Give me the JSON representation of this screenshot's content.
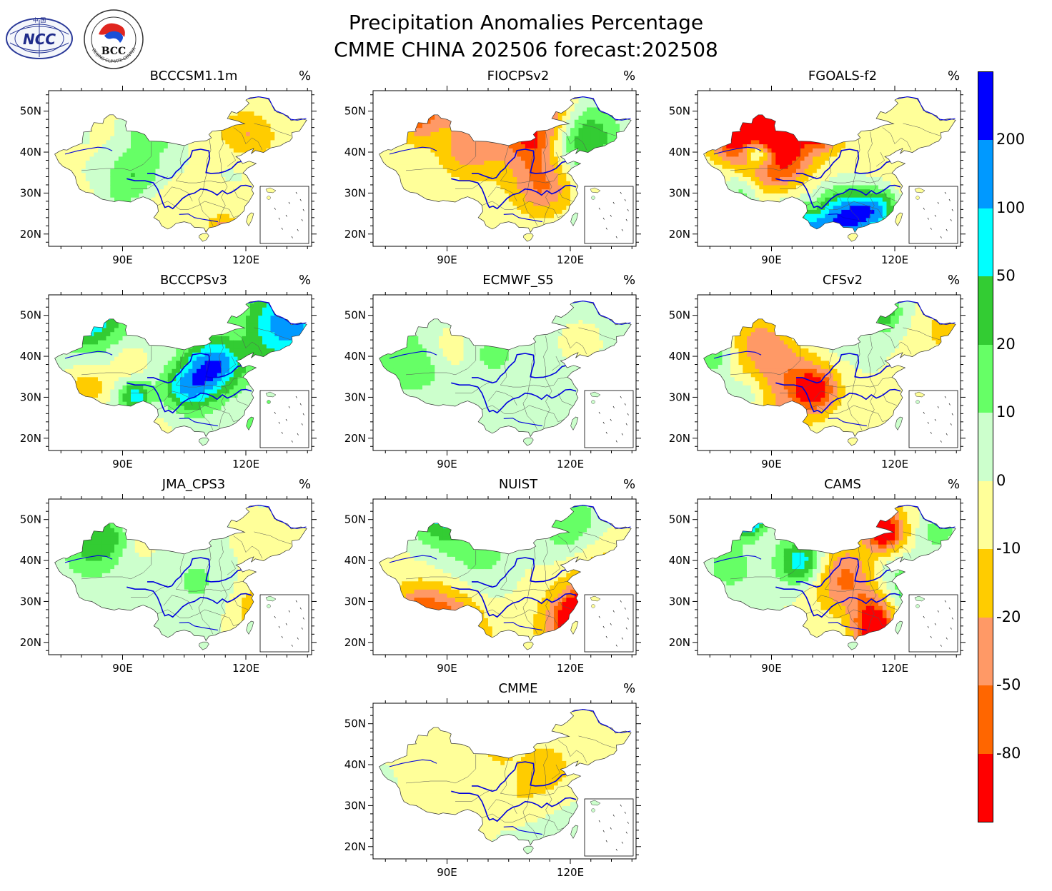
{
  "title_line1": "Precipitation Anomalies Percentage",
  "title_line2": "CMME CHINA 202506 forecast:202508",
  "logos": [
    {
      "name": "NCC",
      "text": "NCC",
      "top_text": "中 国"
    },
    {
      "name": "BCC",
      "text": "BCC",
      "ring_text": "BEIJING CLIMATE CENTER"
    }
  ],
  "unit": "%",
  "lat_ticks": [
    "20N",
    "30N",
    "40N",
    "50N"
  ],
  "lon_ticks": [
    "90E",
    "120E"
  ],
  "panels": [
    {
      "name": "BCCCSM1.1m",
      "unit": "%",
      "palette": "mixed-dry"
    },
    {
      "name": "FIOCPSv2",
      "unit": "%",
      "palette": "mixed"
    },
    {
      "name": "FGOALS-f2",
      "unit": "%",
      "palette": "dry-strong"
    },
    {
      "name": "BCCCPSv3",
      "unit": "%",
      "palette": "wet"
    },
    {
      "name": "ECMWF_S5",
      "unit": "%",
      "palette": "weak"
    },
    {
      "name": "CFSv2",
      "unit": "%",
      "palette": "mixed"
    },
    {
      "name": "JMA_CPS3",
      "unit": "%",
      "palette": "weak-wet"
    },
    {
      "name": "NUIST",
      "unit": "%",
      "palette": "mixed-dry"
    },
    {
      "name": "CAMS",
      "unit": "%",
      "palette": "strong"
    },
    {
      "name": "CMME",
      "unit": "%",
      "palette": "weak"
    }
  ],
  "colorbar": {
    "colors": [
      "#ff0000",
      "#ff6600",
      "#ff9966",
      "#ffcc00",
      "#ffff99",
      "#ccffcc",
      "#66ff66",
      "#33cc33",
      "#00ffff",
      "#0099ff",
      "#0000ff"
    ],
    "labels": [
      "-80",
      "-50",
      "-20",
      "-10",
      "0",
      "10",
      "20",
      "50",
      "100",
      "200"
    ]
  }
}
